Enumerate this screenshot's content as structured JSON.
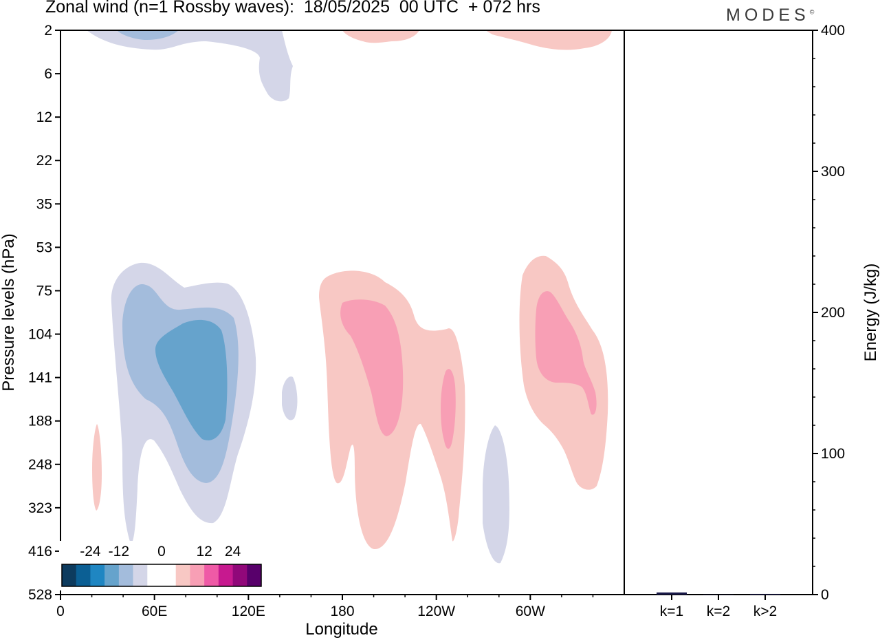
{
  "title": "Zonal wind (n=1 Rossby waves):  18/05/2025  00 UTC  + 072 hrs",
  "brand": "MODES",
  "brand_mark": "©",
  "chart_data": [
    {
      "type": "contour",
      "xlabel": "Longitude",
      "ylabel": "Pressure levels (hPa)",
      "x_ticks": [
        "0",
        "60E",
        "120E",
        "180",
        "120W",
        "60W"
      ],
      "y_ticks": [
        "2",
        "6",
        "12",
        "22",
        "35",
        "53",
        "75",
        "104",
        "141",
        "188",
        "248",
        "323",
        "416",
        "528"
      ],
      "colorbar": {
        "labels": [
          "-24",
          "-12",
          "0",
          "12",
          "24"
        ],
        "colors": [
          "#0d3b5e",
          "#0b5f94",
          "#1f86c2",
          "#66a3cc",
          "#a3bcdc",
          "#d4d6e8",
          "#ffffff",
          "#ffffff",
          "#f8c8c4",
          "#f89fb5",
          "#ef5aa6",
          "#c7198f",
          "#91087a",
          "#58006b"
        ]
      },
      "regions": [
        {
          "sign": "negative",
          "level": 1,
          "lon_range": [
            38,
            128
          ],
          "p_range": [
            53,
            416
          ]
        },
        {
          "sign": "negative",
          "level": 2,
          "lon_range": [
            40,
            114
          ],
          "p_range": [
            75,
            290
          ]
        },
        {
          "sign": "negative",
          "level": 3,
          "lon_range": [
            60,
            106
          ],
          "p_range": [
            104,
            200
          ]
        },
        {
          "sign": "positive",
          "level": 1,
          "lon_range": [
            166,
            258
          ],
          "p_range": [
            75,
            416
          ]
        },
        {
          "sign": "positive",
          "level": 2,
          "lon_range": [
            178,
            218
          ],
          "p_range": [
            85,
            200
          ]
        },
        {
          "sign": "positive",
          "level": 2,
          "lon_range": [
            241,
            252
          ],
          "p_range": [
            141,
            248
          ]
        },
        {
          "sign": "positive",
          "level": 1,
          "lon_range": [
            288,
            350
          ],
          "p_range": [
            53,
            340
          ]
        },
        {
          "sign": "positive",
          "level": 2,
          "lon_range": [
            295,
            342
          ],
          "p_range": [
            75,
            180
          ]
        },
        {
          "sign": "negative",
          "level": 1,
          "lon_range": [
            277,
            290
          ],
          "p_range": [
            188,
            416
          ]
        },
        {
          "sign": "negative",
          "level": 1,
          "lon_range": [
            143,
            152
          ],
          "p_range": [
            141,
            188
          ]
        },
        {
          "sign": "positive",
          "level": 1,
          "lon_range": [
            19,
            23
          ],
          "p_range": [
            188,
            323
          ]
        },
        {
          "sign": "negative",
          "level": 1,
          "lon_range": [
            12,
            150
          ],
          "p_range": [
            2,
            10
          ]
        },
        {
          "sign": "negative",
          "level": 2,
          "lon_range": [
            35,
            60
          ],
          "p_range": [
            2,
            3
          ]
        },
        {
          "sign": "positive",
          "level": 1,
          "lon_range": [
            180,
            220
          ],
          "p_range": [
            2,
            3
          ]
        },
        {
          "sign": "positive",
          "level": 1,
          "lon_range": [
            270,
            360
          ],
          "p_range": [
            2,
            3
          ]
        }
      ]
    },
    {
      "type": "bar",
      "categories": [
        "k=1",
        "k=2",
        "k>2"
      ],
      "values": [
        1.5,
        0,
        0.5
      ],
      "ylabel": "Energy (J/kg)",
      "y_ticks": [
        "0",
        "100",
        "200",
        "300",
        "400"
      ],
      "ylim": [
        0,
        400
      ],
      "color": "#1a1a4a"
    }
  ]
}
